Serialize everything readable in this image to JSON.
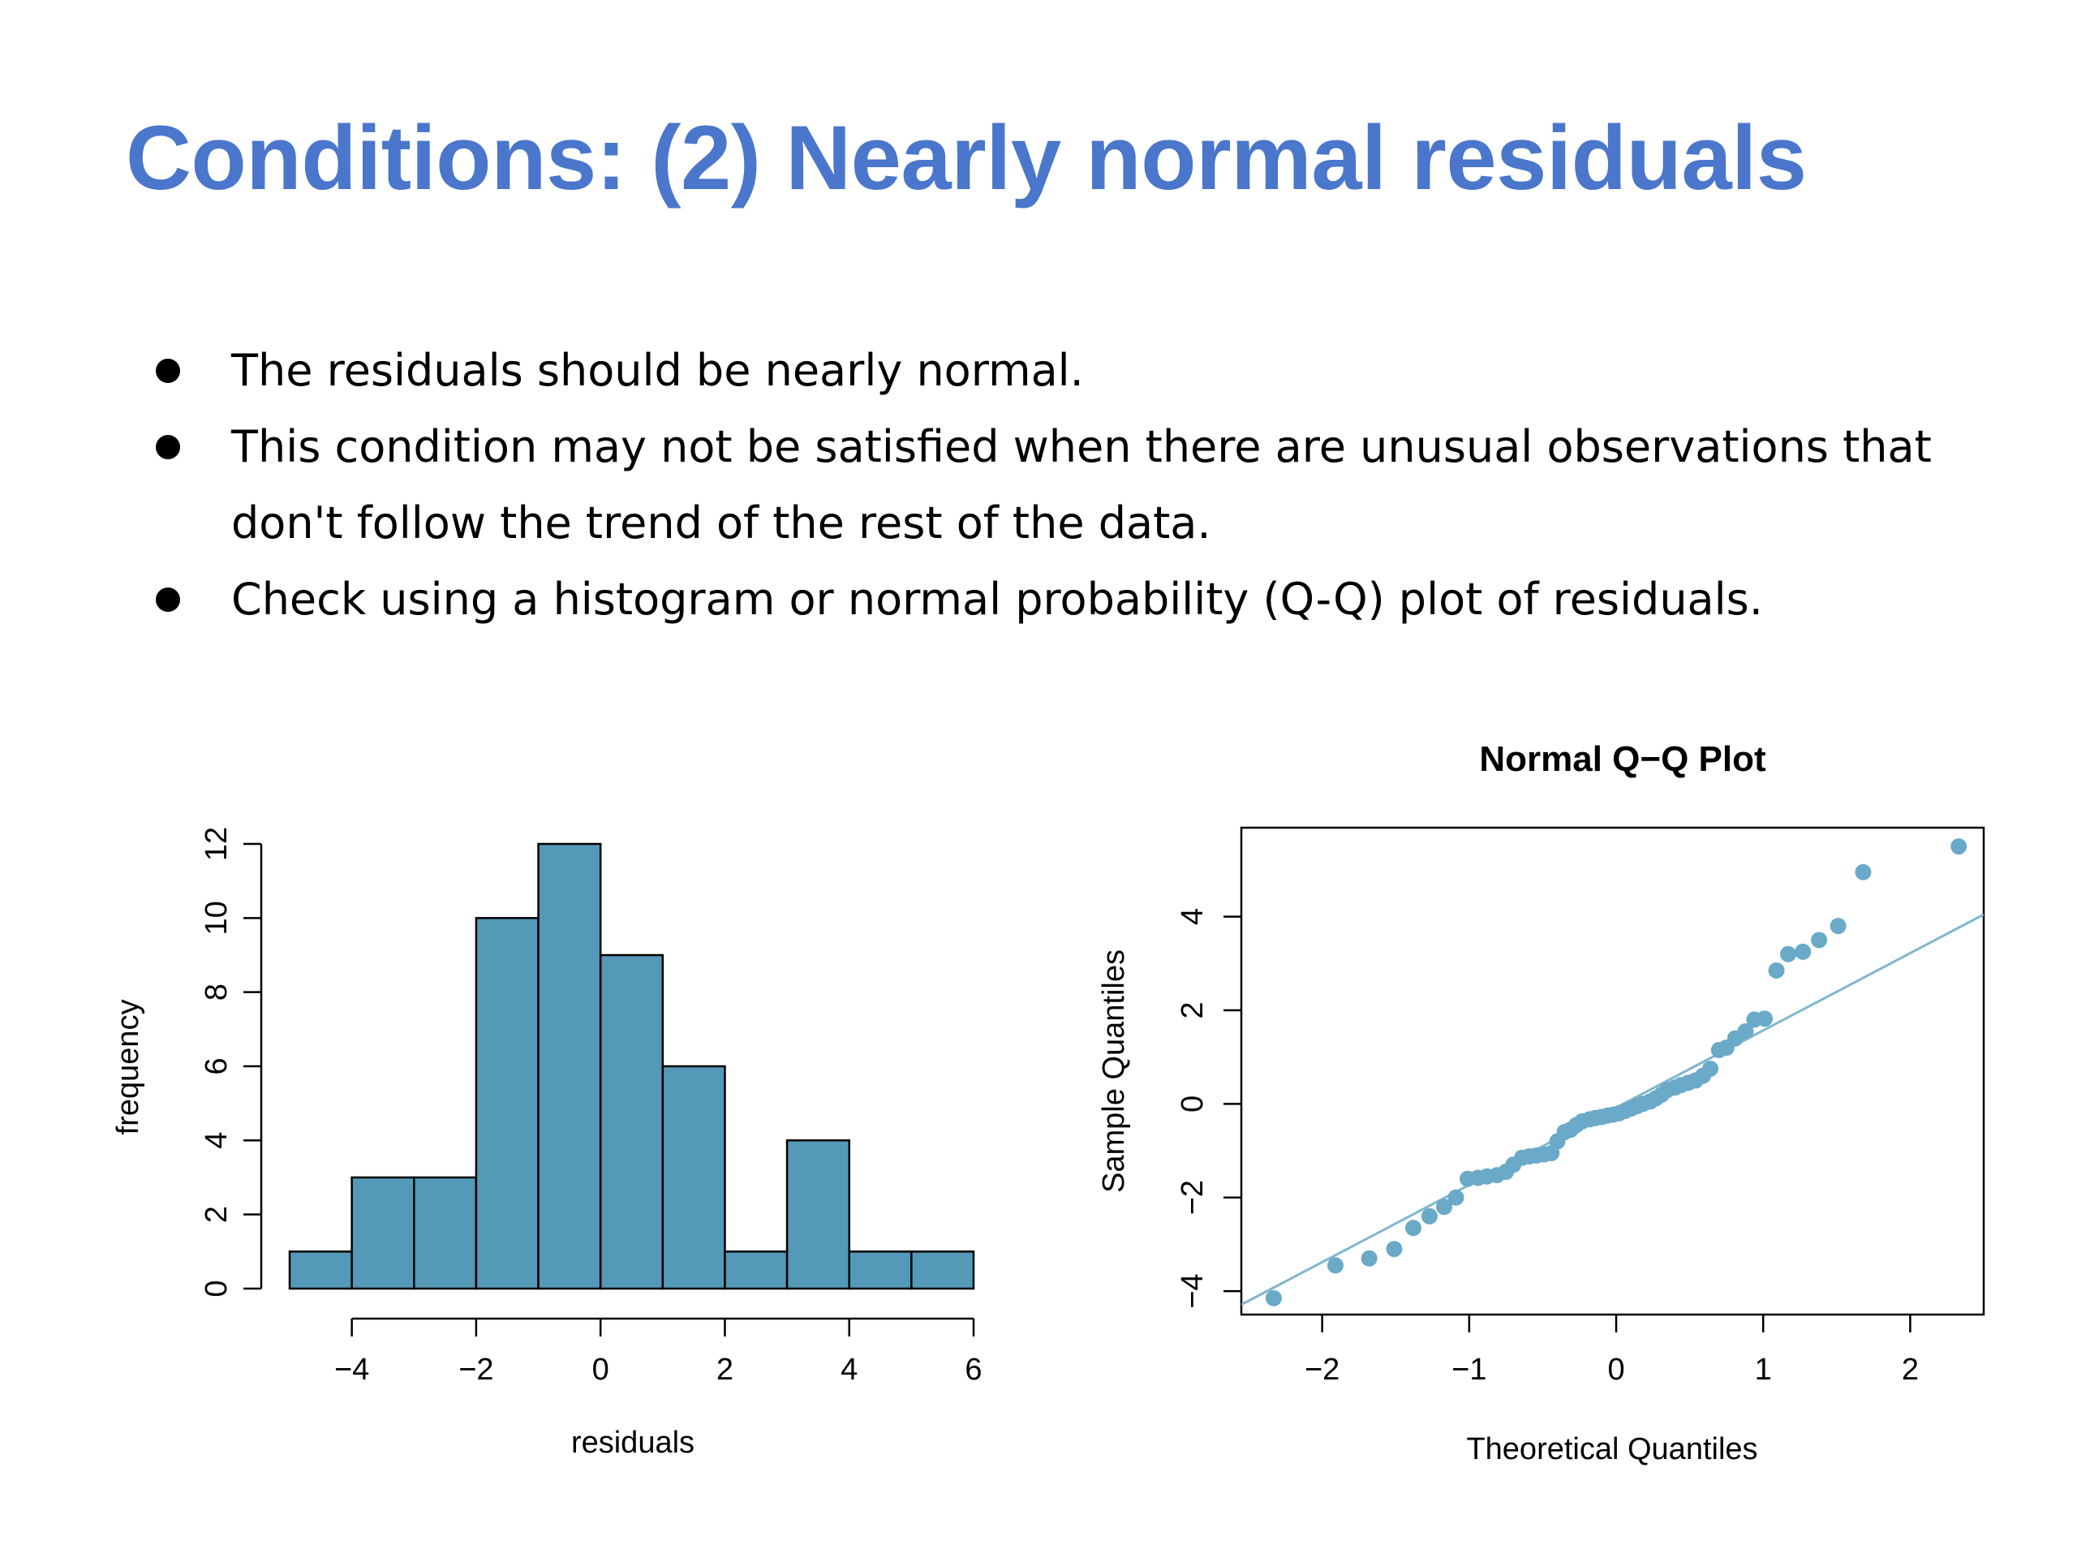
{
  "slide": {
    "title": "Conditions: (2) Nearly normal residuals",
    "bullets": [
      {
        "text": "The residuals should be nearly normal."
      },
      {
        "text": "This condition may not be satisfied when there are unusual observations that don't follow the trend of the rest of the data."
      },
      {
        "text": "Check using a histogram or normal probability (Q-Q) plot of residuals."
      }
    ]
  },
  "colors": {
    "title": "#4a76cc",
    "bar_fill": "#5599b8",
    "point_fill": "#6aa9c8",
    "ref_line": "#7fb7cf"
  },
  "chart_data": [
    {
      "type": "bar",
      "xlabel": "residuals",
      "ylabel": "frequency",
      "bins": [
        [
          -5,
          -4
        ],
        [
          -4,
          -3
        ],
        [
          -3,
          -2
        ],
        [
          -2,
          -1
        ],
        [
          -1,
          0
        ],
        [
          0,
          1
        ],
        [
          1,
          2
        ],
        [
          2,
          3
        ],
        [
          3,
          4
        ],
        [
          4,
          5
        ],
        [
          5,
          6
        ]
      ],
      "values": [
        1,
        3,
        3,
        10,
        12,
        9,
        6,
        1,
        4,
        1,
        1
      ],
      "xticks": [
        "-4",
        "-2",
        "0",
        "2",
        "4",
        "6"
      ],
      "yticks": [
        "0",
        "2",
        "4",
        "6",
        "8",
        "10",
        "12"
      ],
      "xlim": [
        -5,
        6
      ],
      "ylim": [
        0,
        12
      ]
    },
    {
      "type": "scatter",
      "title": "Normal Q−Q Plot",
      "xlabel": "Theoretical Quantiles",
      "ylabel": "Sample Quantiles",
      "xticks": [
        "−2",
        "−1",
        "0",
        "1",
        "2"
      ],
      "yticks": [
        "−4",
        "−2",
        "0",
        "2",
        "4"
      ],
      "xlim": [
        -2.55,
        2.5
      ],
      "ylim": [
        -4.5,
        5.9
      ],
      "reference_line": {
        "slope": 1.65,
        "intercept": -0.08
      },
      "points": [
        [
          -2.33,
          -4.15
        ],
        [
          -1.91,
          -3.45
        ],
        [
          -1.68,
          -3.3
        ],
        [
          -1.51,
          -3.1
        ],
        [
          -1.38,
          -2.65
        ],
        [
          -1.27,
          -2.4
        ],
        [
          -1.17,
          -2.2
        ],
        [
          -1.09,
          -2.0
        ],
        [
          -1.01,
          -1.6
        ],
        [
          -0.94,
          -1.58
        ],
        [
          -0.88,
          -1.55
        ],
        [
          -0.81,
          -1.52
        ],
        [
          -0.75,
          -1.45
        ],
        [
          -0.7,
          -1.3
        ],
        [
          -0.64,
          -1.15
        ],
        [
          -0.59,
          -1.12
        ],
        [
          -0.54,
          -1.1
        ],
        [
          -0.49,
          -1.08
        ],
        [
          -0.44,
          -1.05
        ],
        [
          -0.4,
          -0.8
        ],
        [
          -0.35,
          -0.6
        ],
        [
          -0.31,
          -0.55
        ],
        [
          -0.27,
          -0.45
        ],
        [
          -0.23,
          -0.37
        ],
        [
          -0.18,
          -0.33
        ],
        [
          -0.14,
          -0.3
        ],
        [
          -0.1,
          -0.28
        ],
        [
          -0.06,
          -0.25
        ],
        [
          -0.02,
          -0.23
        ],
        [
          0.02,
          -0.2
        ],
        [
          0.06,
          -0.15
        ],
        [
          0.1,
          -0.1
        ],
        [
          0.14,
          -0.05
        ],
        [
          0.18,
          0.0
        ],
        [
          0.23,
          0.05
        ],
        [
          0.27,
          0.12
        ],
        [
          0.31,
          0.2
        ],
        [
          0.35,
          0.3
        ],
        [
          0.4,
          0.35
        ],
        [
          0.44,
          0.4
        ],
        [
          0.49,
          0.45
        ],
        [
          0.54,
          0.5
        ],
        [
          0.59,
          0.6
        ],
        [
          0.64,
          0.75
        ],
        [
          0.7,
          1.15
        ],
        [
          0.75,
          1.2
        ],
        [
          0.81,
          1.4
        ],
        [
          0.88,
          1.55
        ],
        [
          0.94,
          1.8
        ],
        [
          1.01,
          1.82
        ],
        [
          1.09,
          2.85
        ],
        [
          1.17,
          3.2
        ],
        [
          1.27,
          3.25
        ],
        [
          1.38,
          3.5
        ],
        [
          1.51,
          3.8
        ],
        [
          1.68,
          4.95
        ],
        [
          2.33,
          5.5
        ]
      ]
    }
  ]
}
